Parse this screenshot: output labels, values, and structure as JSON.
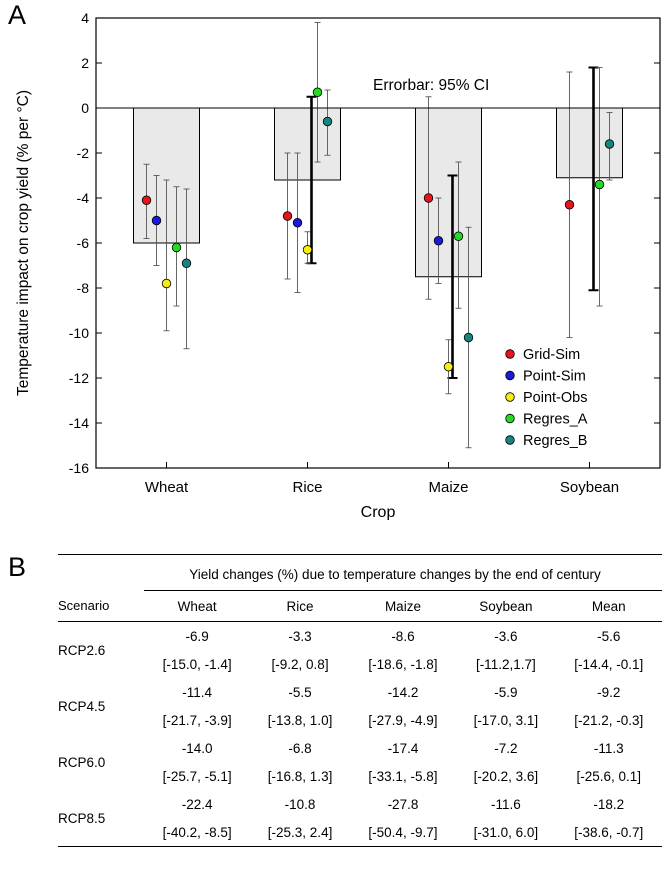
{
  "panel_a_letter": "A",
  "panel_b_letter": "B",
  "chart_data": {
    "type": "bar",
    "categories": [
      "Wheat",
      "Rice",
      "Maize",
      "Soybean"
    ],
    "values": [
      -6.0,
      -3.2,
      -7.5,
      -3.1
    ],
    "bar_ci": [
      null,
      [
        -6.9,
        0.5
      ],
      [
        -12.0,
        -3.0
      ],
      [
        -8.1,
        1.8
      ]
    ],
    "xlabel": "Crop",
    "ylabel": "Temperature impact on crop yield (% per °C)",
    "ylim": [
      -16,
      4
    ],
    "yticks": [
      -16,
      -14,
      -12,
      -10,
      -8,
      -6,
      -4,
      -2,
      0,
      2,
      4
    ],
    "annotation": "Errorbar: 95% CI",
    "legend_position": "bottom-right",
    "grid": false,
    "series": [
      {
        "name": "Grid-Sim",
        "color": "#e8141c",
        "values": [
          -4.1,
          -4.8,
          -4.0,
          -4.3
        ],
        "ci": [
          [
            -5.8,
            -2.5
          ],
          [
            -7.6,
            -2.0
          ],
          [
            -8.5,
            0.5
          ],
          [
            -10.2,
            1.6
          ]
        ]
      },
      {
        "name": "Point-Sim",
        "color": "#1a1adc",
        "values": [
          -5.0,
          -5.1,
          -5.9,
          null
        ],
        "ci": [
          [
            -7.0,
            -3.0
          ],
          [
            -8.2,
            -2.0
          ],
          [
            -7.8,
            -4.0
          ],
          null
        ]
      },
      {
        "name": "Point-Obs",
        "color": "#f5ee10",
        "values": [
          -7.8,
          -6.3,
          -11.5,
          null
        ],
        "ci": [
          [
            -9.9,
            -3.2
          ],
          [
            -6.9,
            -5.5
          ],
          [
            -12.7,
            -10.3
          ],
          null
        ]
      },
      {
        "name": "Regres_A",
        "color": "#22dc22",
        "values": [
          -6.2,
          0.7,
          -5.7,
          -3.4
        ],
        "ci": [
          [
            -8.8,
            -3.5
          ],
          [
            -2.4,
            3.8
          ],
          [
            -8.9,
            -2.4
          ],
          [
            -8.8,
            1.8
          ]
        ]
      },
      {
        "name": "Regres_B",
        "color": "#17857f",
        "values": [
          -6.9,
          -0.6,
          -10.2,
          -1.6
        ],
        "ci": [
          [
            -10.7,
            -3.6
          ],
          [
            -2.1,
            0.8
          ],
          [
            -15.1,
            -5.3
          ],
          [
            -3.2,
            -0.2
          ]
        ]
      }
    ]
  },
  "table": {
    "caption": "Yield changes (%) due to temperature changes by the end of century",
    "scenario_header": "Scenario",
    "columns": [
      "Wheat",
      "Rice",
      "Maize",
      "Soybean",
      "Mean"
    ],
    "rows": [
      {
        "scenario": "RCP2.6",
        "values": [
          "-6.9",
          "-3.3",
          "-8.6",
          "-3.6",
          "-5.6"
        ],
        "ci": [
          "[-15.0, -1.4]",
          "[-9.2, 0.8]",
          "[-18.6, -1.8]",
          "[-11.2,1.7]",
          "[-14.4, -0.1]"
        ]
      },
      {
        "scenario": "RCP4.5",
        "values": [
          "-11.4",
          "-5.5",
          "-14.2",
          "-5.9",
          "-9.2"
        ],
        "ci": [
          "[-21.7, -3.9]",
          "[-13.8, 1.0]",
          "[-27.9, -4.9]",
          "[-17.0, 3.1]",
          "[-21.2, -0.3]"
        ]
      },
      {
        "scenario": "RCP6.0",
        "values": [
          "-14.0",
          "-6.8",
          "-17.4",
          "-7.2",
          "-11.3"
        ],
        "ci": [
          "[-25.7, -5.1]",
          "[-16.8, 1.3]",
          "[-33.1, -5.8]",
          "[-20.2, 3.6]",
          "[-25.6, 0.1]"
        ]
      },
      {
        "scenario": "RCP8.5",
        "values": [
          "-22.4",
          "-10.8",
          "-27.8",
          "-11.6",
          "-18.2"
        ],
        "ci": [
          "[-40.2, -8.5]",
          "[-25.3, 2.4]",
          "[-50.4, -9.7]",
          "[-31.0, 6.0]",
          "[-38.6, -0.7]"
        ]
      }
    ]
  }
}
